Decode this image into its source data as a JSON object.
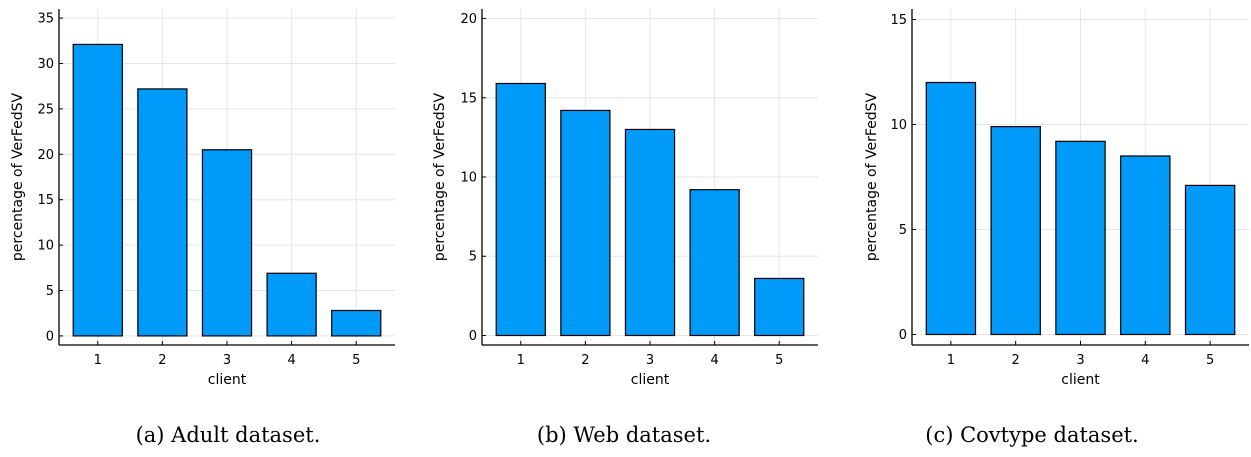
{
  "colors": {
    "bar": "#009af9",
    "bar_edge": "#000000",
    "grid": "#e6e6e6",
    "axis": "#000000"
  },
  "chart_data": [
    {
      "type": "bar",
      "title": "",
      "xlabel": "client",
      "ylabel": "percentage of VerFedSV",
      "categories": [
        "1",
        "2",
        "3",
        "4",
        "5"
      ],
      "values": [
        32.1,
        27.2,
        20.5,
        6.9,
        2.8
      ],
      "ylim": [
        -1,
        36
      ],
      "yticks": [
        0,
        5,
        10,
        15,
        20,
        25,
        30,
        35
      ],
      "grid": true,
      "legend": "none",
      "caption": "(a) Adult dataset."
    },
    {
      "type": "bar",
      "title": "",
      "xlabel": "client",
      "ylabel": "percentage of VerFedSV",
      "categories": [
        "1",
        "2",
        "3",
        "4",
        "5"
      ],
      "values": [
        15.9,
        14.2,
        13.0,
        9.2,
        3.6
      ],
      "ylim": [
        -0.6,
        20.6
      ],
      "yticks": [
        0,
        5,
        10,
        15,
        20
      ],
      "grid": true,
      "legend": "none",
      "caption": "(b) Web dataset."
    },
    {
      "type": "bar",
      "title": "",
      "xlabel": "client",
      "ylabel": "percentage of VerFedSV",
      "categories": [
        "1",
        "2",
        "3",
        "4",
        "5"
      ],
      "values": [
        12.0,
        9.9,
        9.2,
        8.5,
        7.1
      ],
      "ylim": [
        -0.5,
        15.5
      ],
      "yticks": [
        0,
        5,
        10,
        15
      ],
      "grid": true,
      "legend": "none",
      "caption": "(c) Covtype dataset."
    }
  ]
}
